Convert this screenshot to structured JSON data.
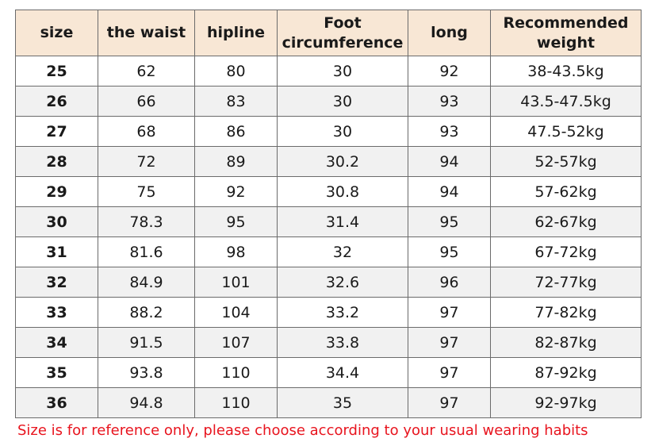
{
  "table": {
    "headers": {
      "size": "size",
      "waist": "the waist",
      "hip": "hipline",
      "foot_line1": "Foot",
      "foot_line2": "circumference",
      "long": "long",
      "weight_line1": "Recommended",
      "weight_line2": "weight"
    },
    "rows": [
      {
        "size": "25",
        "waist": "62",
        "hip": "80",
        "foot": "30",
        "long": "92",
        "weight": "38-43.5kg"
      },
      {
        "size": "26",
        "waist": "66",
        "hip": "83",
        "foot": "30",
        "long": "93",
        "weight": "43.5-47.5kg"
      },
      {
        "size": "27",
        "waist": "68",
        "hip": "86",
        "foot": "30",
        "long": "93",
        "weight": "47.5-52kg"
      },
      {
        "size": "28",
        "waist": "72",
        "hip": "89",
        "foot": "30.2",
        "long": "94",
        "weight": "52-57kg"
      },
      {
        "size": "29",
        "waist": "75",
        "hip": "92",
        "foot": "30.8",
        "long": "94",
        "weight": "57-62kg"
      },
      {
        "size": "30",
        "waist": "78.3",
        "hip": "95",
        "foot": "31.4",
        "long": "95",
        "weight": "62-67kg"
      },
      {
        "size": "31",
        "waist": "81.6",
        "hip": "98",
        "foot": "32",
        "long": "95",
        "weight": "67-72kg"
      },
      {
        "size": "32",
        "waist": "84.9",
        "hip": "101",
        "foot": "32.6",
        "long": "96",
        "weight": "72-77kg"
      },
      {
        "size": "33",
        "waist": "88.2",
        "hip": "104",
        "foot": "33.2",
        "long": "97",
        "weight": "77-82kg"
      },
      {
        "size": "34",
        "waist": "91.5",
        "hip": "107",
        "foot": "33.8",
        "long": "97",
        "weight": "82-87kg"
      },
      {
        "size": "35",
        "waist": "93.8",
        "hip": "110",
        "foot": "34.4",
        "long": "97",
        "weight": "87-92kg"
      },
      {
        "size": "36",
        "waist": "94.8",
        "hip": "110",
        "foot": "35",
        "long": "97",
        "weight": "92-97kg"
      }
    ]
  },
  "note": "Size is for reference only, please choose according to your usual wearing habits",
  "colors": {
    "header_bg": "#f8e7d5",
    "alt_row_bg": "#f1f1f1",
    "note_text": "#e8141e",
    "border": "#6b6b6b"
  }
}
